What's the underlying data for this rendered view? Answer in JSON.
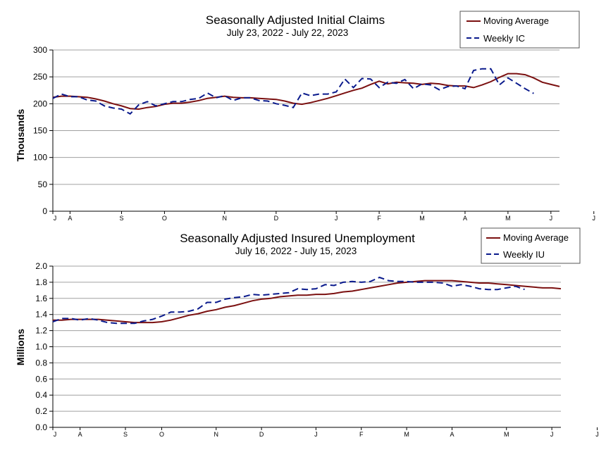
{
  "colors": {
    "moving_average": "#7b1010",
    "weekly": "#0a1a8c",
    "grid": "#a0a0a0"
  },
  "chart_data": [
    {
      "type": "line",
      "title": "Seasonally Adjusted Initial Claims",
      "subtitle": "July 23, 2022 - July 22, 2023",
      "ylabel": "Thousands",
      "xlabel": "",
      "ylim": [
        0,
        300
      ],
      "yticks": [
        "0",
        "50",
        "100",
        "150",
        "200",
        "250",
        "300"
      ],
      "month_labels": [
        "J",
        "A",
        "S",
        "O",
        "N",
        "D",
        "J",
        "F",
        "M",
        "A",
        "M",
        "J",
        "J"
      ],
      "month_week_index": [
        0,
        2,
        8,
        13,
        20,
        26,
        33,
        38,
        43,
        48,
        53,
        58,
        63
      ],
      "legend_position": "top-right",
      "grid": true,
      "series": [
        {
          "name": "Moving Average",
          "style": "solid",
          "values": [
            212,
            214,
            214,
            213,
            212,
            209,
            205,
            200,
            196,
            191,
            190,
            193,
            195,
            199,
            201,
            201,
            203,
            206,
            210,
            212,
            214,
            212,
            211,
            211,
            210,
            209,
            208,
            205,
            201,
            199,
            202,
            206,
            210,
            215,
            220,
            225,
            229,
            236,
            242,
            237,
            240,
            239,
            238,
            236,
            238,
            237,
            234,
            233,
            233,
            230,
            235,
            241,
            249,
            256,
            256,
            254,
            248,
            240,
            236,
            232
          ]
        },
        {
          "name": "Weekly IC",
          "style": "dashed",
          "values": [
            210,
            218,
            213,
            213,
            207,
            205,
            196,
            192,
            190,
            181,
            198,
            204,
            196,
            200,
            204,
            204,
            208,
            210,
            220,
            211,
            215,
            206,
            211,
            211,
            206,
            205,
            200,
            197,
            193,
            220,
            215,
            218,
            218,
            222,
            246,
            230,
            247,
            246,
            230,
            240,
            238,
            245,
            228,
            237,
            235,
            226,
            232,
            233,
            228,
            262,
            265,
            265,
            235,
            248,
            238,
            228,
            219
          ]
        }
      ]
    },
    {
      "type": "line",
      "title": "Seasonally Adjusted Insured Unemployment",
      "subtitle": "July 16, 2022 - July 15, 2023",
      "ylabel": "Millions",
      "xlabel": "",
      "ylim": [
        0,
        2.0
      ],
      "yticks": [
        "0.0",
        "0.2",
        "0.4",
        "0.6",
        "0.8",
        "1.0",
        "1.2",
        "1.4",
        "1.6",
        "1.8",
        "2.0"
      ],
      "month_labels": [
        "J",
        "A",
        "S",
        "O",
        "N",
        "D",
        "J",
        "F",
        "M",
        "A",
        "M",
        "J",
        "J"
      ],
      "month_week_index": [
        0,
        3,
        8,
        12,
        18,
        23,
        29,
        34,
        39,
        44,
        50,
        55,
        60
      ],
      "legend_position": "top-right",
      "grid": true,
      "series": [
        {
          "name": "Moving Average",
          "style": "solid",
          "values": [
            1.33,
            1.33,
            1.34,
            1.34,
            1.34,
            1.34,
            1.33,
            1.32,
            1.31,
            1.3,
            1.3,
            1.3,
            1.31,
            1.33,
            1.36,
            1.39,
            1.41,
            1.44,
            1.46,
            1.49,
            1.51,
            1.54,
            1.57,
            1.59,
            1.6,
            1.62,
            1.63,
            1.64,
            1.64,
            1.65,
            1.65,
            1.66,
            1.68,
            1.69,
            1.71,
            1.73,
            1.75,
            1.77,
            1.79,
            1.8,
            1.81,
            1.82,
            1.82,
            1.82,
            1.82,
            1.81,
            1.8,
            1.79,
            1.79,
            1.78,
            1.77,
            1.76,
            1.75,
            1.74,
            1.73,
            1.73,
            1.72
          ]
        },
        {
          "name": "Weekly IU",
          "style": "dashed",
          "values": [
            1.31,
            1.35,
            1.35,
            1.33,
            1.35,
            1.33,
            1.3,
            1.29,
            1.29,
            1.29,
            1.32,
            1.34,
            1.38,
            1.43,
            1.43,
            1.44,
            1.47,
            1.55,
            1.55,
            1.59,
            1.61,
            1.62,
            1.65,
            1.64,
            1.65,
            1.66,
            1.67,
            1.72,
            1.71,
            1.72,
            1.77,
            1.76,
            1.8,
            1.81,
            1.8,
            1.81,
            1.86,
            1.82,
            1.81,
            1.81,
            1.8,
            1.8,
            1.8,
            1.79,
            1.75,
            1.77,
            1.75,
            1.72,
            1.71,
            1.71,
            1.73,
            1.75,
            1.71
          ]
        }
      ]
    }
  ]
}
